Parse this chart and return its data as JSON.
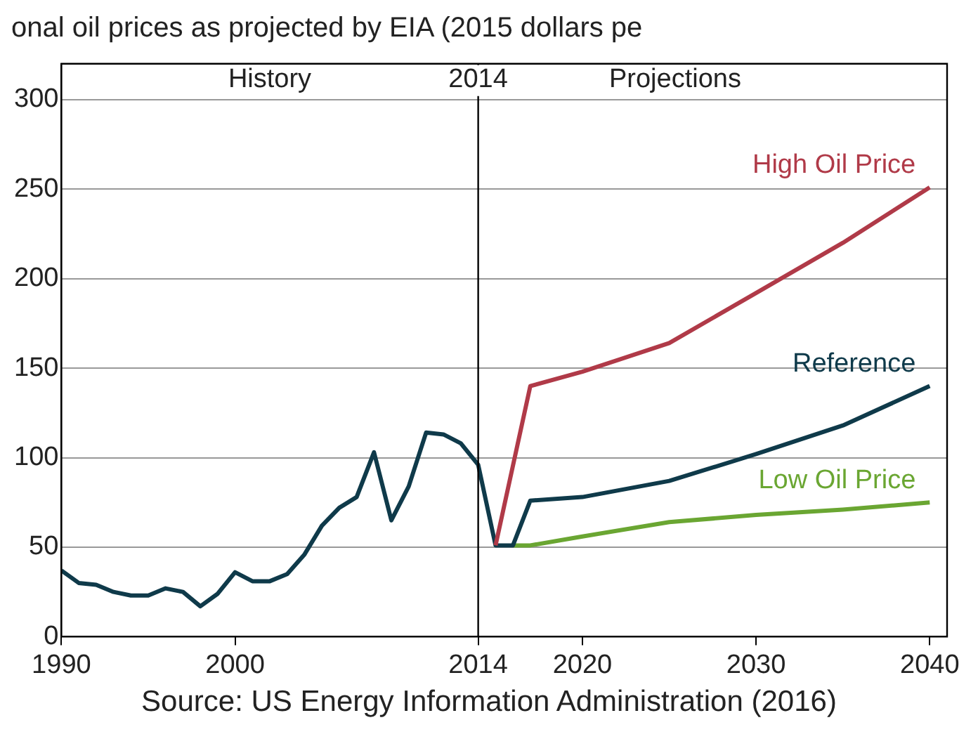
{
  "chart_data": {
    "type": "line",
    "title": "onal oil prices as projected by EIA (2015 dollars pe",
    "annotations": [
      "History",
      "Projections",
      "Source: US Energy Information Administration (2016)"
    ],
    "xlim": [
      1990,
      2041
    ],
    "xticks": [
      1990,
      2000,
      2014,
      2020,
      2030,
      2040
    ],
    "ylim": [
      0,
      320
    ],
    "yticks": [
      0,
      50,
      100,
      150,
      200,
      250,
      300
    ],
    "grid": "y",
    "legend": false,
    "marker": "none",
    "line_style": "solid",
    "ref_lines": [
      {
        "axis": "x",
        "value": 2014,
        "label": "2014",
        "color": "#000000"
      }
    ],
    "series": [
      {
        "name": "High Oil Price",
        "color": "#b03a48",
        "x": [
          2015,
          2017,
          2020,
          2025,
          2030,
          2035,
          2040
        ],
        "values": [
          51,
          140,
          148,
          164,
          192,
          220,
          251
        ]
      },
      {
        "name": "Reference",
        "color": "#0f3a4a",
        "x": [
          1990,
          1991,
          1992,
          1993,
          1994,
          1995,
          1996,
          1997,
          1998,
          1999,
          2000,
          2001,
          2002,
          2003,
          2004,
          2005,
          2006,
          2007,
          2008,
          2009,
          2010,
          2011,
          2012,
          2013,
          2014,
          2015,
          2016,
          2017,
          2020,
          2025,
          2030,
          2035,
          2040
        ],
        "values": [
          37,
          30,
          29,
          25,
          23,
          23,
          27,
          25,
          17,
          24,
          36,
          31,
          31,
          35,
          46,
          62,
          72,
          78,
          103,
          65,
          84,
          114,
          113,
          108,
          96,
          51,
          51,
          76,
          78,
          87,
          102,
          118,
          140
        ]
      },
      {
        "name": "Low Oil Price",
        "color": "#6aa632",
        "x": [
          2016,
          2017,
          2020,
          2025,
          2030,
          2035,
          2040
        ],
        "values": [
          51,
          51,
          56,
          64,
          68,
          71,
          75
        ]
      }
    ]
  }
}
